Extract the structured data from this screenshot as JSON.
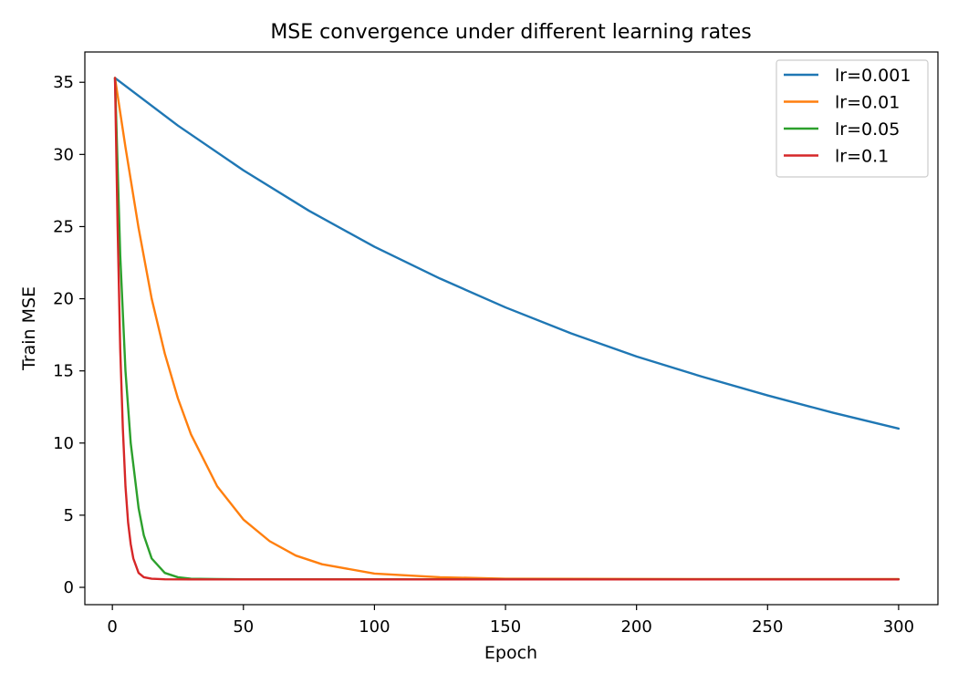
{
  "chart_data": {
    "type": "line",
    "title": "MSE convergence under different learning rates",
    "xlabel": "Epoch",
    "ylabel": "Train MSE",
    "xlim": [
      -10.5,
      315
    ],
    "ylim": [
      -1.2,
      37.1
    ],
    "xticks": [
      0,
      50,
      100,
      150,
      200,
      250,
      300
    ],
    "yticks": [
      0,
      5,
      10,
      15,
      20,
      25,
      30,
      35
    ],
    "grid": false,
    "legend_position": "top-right",
    "series": [
      {
        "name": "lr=0.001",
        "color": "#1f77b4",
        "x": [
          1,
          25,
          50,
          75,
          100,
          125,
          150,
          175,
          200,
          225,
          250,
          275,
          300
        ],
        "y": [
          35.3,
          32.0,
          28.9,
          26.1,
          23.6,
          21.4,
          19.4,
          17.6,
          16.0,
          14.6,
          13.3,
          12.1,
          11.0
        ]
      },
      {
        "name": "lr=0.01",
        "color": "#ff7f0e",
        "x": [
          1,
          5,
          10,
          15,
          20,
          25,
          30,
          40,
          50,
          60,
          70,
          80,
          100,
          125,
          150,
          200,
          250,
          300
        ],
        "y": [
          35.3,
          30.5,
          24.9,
          20.0,
          16.2,
          13.1,
          10.6,
          7.0,
          4.7,
          3.2,
          2.2,
          1.6,
          0.95,
          0.7,
          0.6,
          0.58,
          0.57,
          0.57
        ]
      },
      {
        "name": "lr=0.05",
        "color": "#2ca02c",
        "x": [
          1,
          3,
          5,
          7,
          10,
          12,
          15,
          20,
          25,
          30,
          40,
          50,
          100,
          200,
          300
        ],
        "y": [
          35.3,
          23.0,
          15.0,
          10.0,
          5.5,
          3.6,
          2.0,
          1.0,
          0.7,
          0.6,
          0.57,
          0.56,
          0.56,
          0.56,
          0.56
        ]
      },
      {
        "name": "lr=0.1",
        "color": "#d62728",
        "x": [
          1,
          2,
          3,
          4,
          5,
          6,
          7,
          8,
          10,
          12,
          15,
          20,
          30,
          50,
          100,
          200,
          300
        ],
        "y": [
          35.3,
          25.0,
          16.5,
          11.0,
          7.0,
          4.5,
          3.0,
          2.0,
          1.0,
          0.7,
          0.6,
          0.56,
          0.55,
          0.55,
          0.55,
          0.55,
          0.55
        ]
      }
    ]
  }
}
